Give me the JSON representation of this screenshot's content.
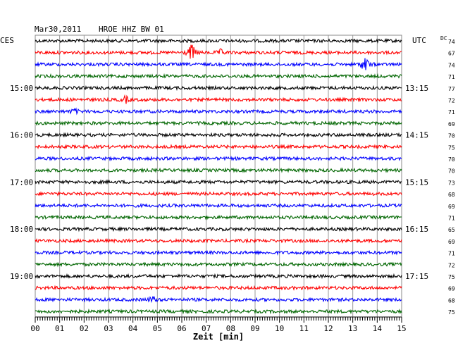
{
  "header": {
    "date": "Mar30,2011",
    "station": "HROE HHZ BW 01",
    "left_tz": "CES",
    "right_tz": "UTC",
    "dc_label": "DC"
  },
  "chart_data": {
    "type": "line",
    "title": "Mar30,2011   HROE HHZ BW 01",
    "xlabel": "Zeit [min]",
    "x_ticks": [
      "00",
      "01",
      "02",
      "03",
      "04",
      "05",
      "06",
      "07",
      "08",
      "09",
      "10",
      "11",
      "12",
      "13",
      "14",
      "15"
    ],
    "xlim": [
      0,
      15
    ],
    "grid": true,
    "trace_colors": [
      "#000000",
      "#ff0000",
      "#0000ff",
      "#006600"
    ],
    "left_hour_labels": [
      "15:00",
      "16:00",
      "17:00",
      "18:00",
      "19:00"
    ],
    "right_hour_labels": [
      "13:15",
      "14:15",
      "15:15",
      "16:15",
      "17:15"
    ],
    "dc_values": [
      "74",
      "67",
      "74",
      "71",
      "77",
      "72",
      "71",
      "69",
      "70",
      "75",
      "70",
      "70",
      "73",
      "68",
      "69",
      "71",
      "65",
      "69",
      "71",
      "72",
      "75",
      "69",
      "68",
      "75"
    ],
    "events": [
      {
        "trace": 1,
        "minute": 6.4,
        "amplitude": 14
      },
      {
        "trace": 1,
        "minute": 7.6,
        "amplitude": 4
      },
      {
        "trace": 2,
        "minute": 13.5,
        "amplitude": 14
      },
      {
        "trace": 5,
        "minute": 3.7,
        "amplitude": 5
      },
      {
        "trace": 6,
        "minute": 1.6,
        "amplitude": 4
      },
      {
        "trace": 22,
        "minute": 4.8,
        "amplitude": 5
      }
    ]
  }
}
